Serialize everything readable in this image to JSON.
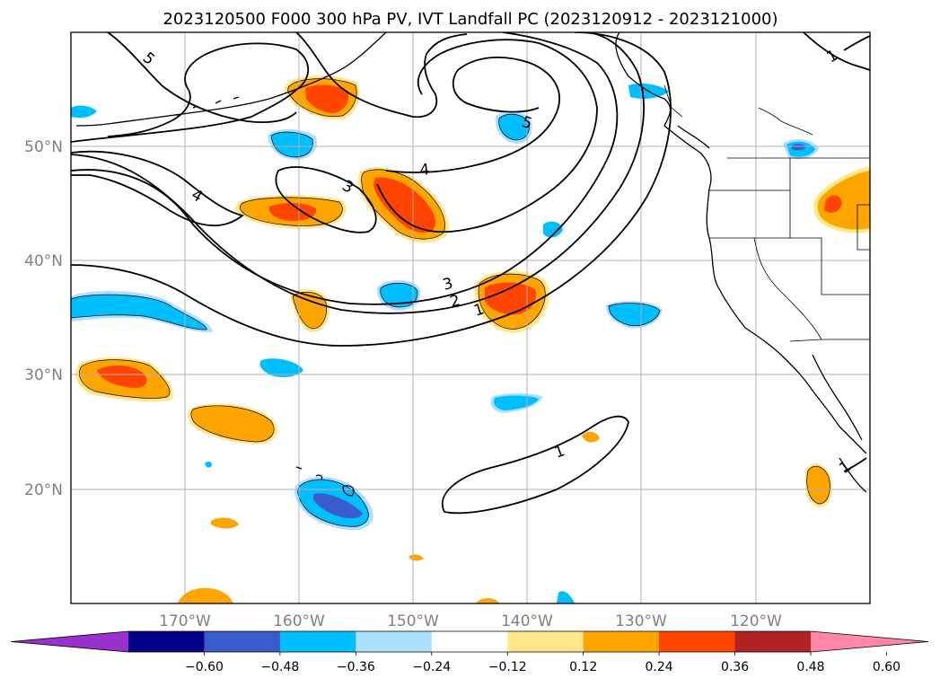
{
  "title": "2023120500 F000 300 hPa PV, IVT Landfall PC (2023120912 - 2023121000)",
  "map": {
    "lat_labels": [
      "50°N",
      "40°N",
      "30°N",
      "20°N"
    ],
    "lon_labels": [
      "170°W",
      "160°W",
      "150°W",
      "140°W",
      "130°W",
      "120°W"
    ],
    "gridlines": true,
    "projection": "PlateCarree",
    "extent": {
      "lon": [
        -180,
        -110
      ],
      "lat": [
        10,
        60
      ]
    },
    "contour_labels": [
      "5",
      "4",
      "3",
      "4",
      "3",
      "2",
      "1",
      "1",
      "5",
      "1",
      "1"
    ],
    "contour_color": "#000000"
  },
  "colorbar": {
    "ticks": [
      "−0.60",
      "−0.48",
      "−0.36",
      "−0.24",
      "−0.12",
      "0.12",
      "0.24",
      "0.36",
      "0.48",
      "0.60"
    ],
    "colors": [
      "#9932CC",
      "#00008B",
      "#3A5BCC",
      "#00BFFF",
      "#ADDFFF",
      "#FFFFFF",
      "#FFE88C",
      "#FFA500",
      "#FF4500",
      "#B22222",
      "#FF88AA"
    ],
    "extend": "both"
  }
}
